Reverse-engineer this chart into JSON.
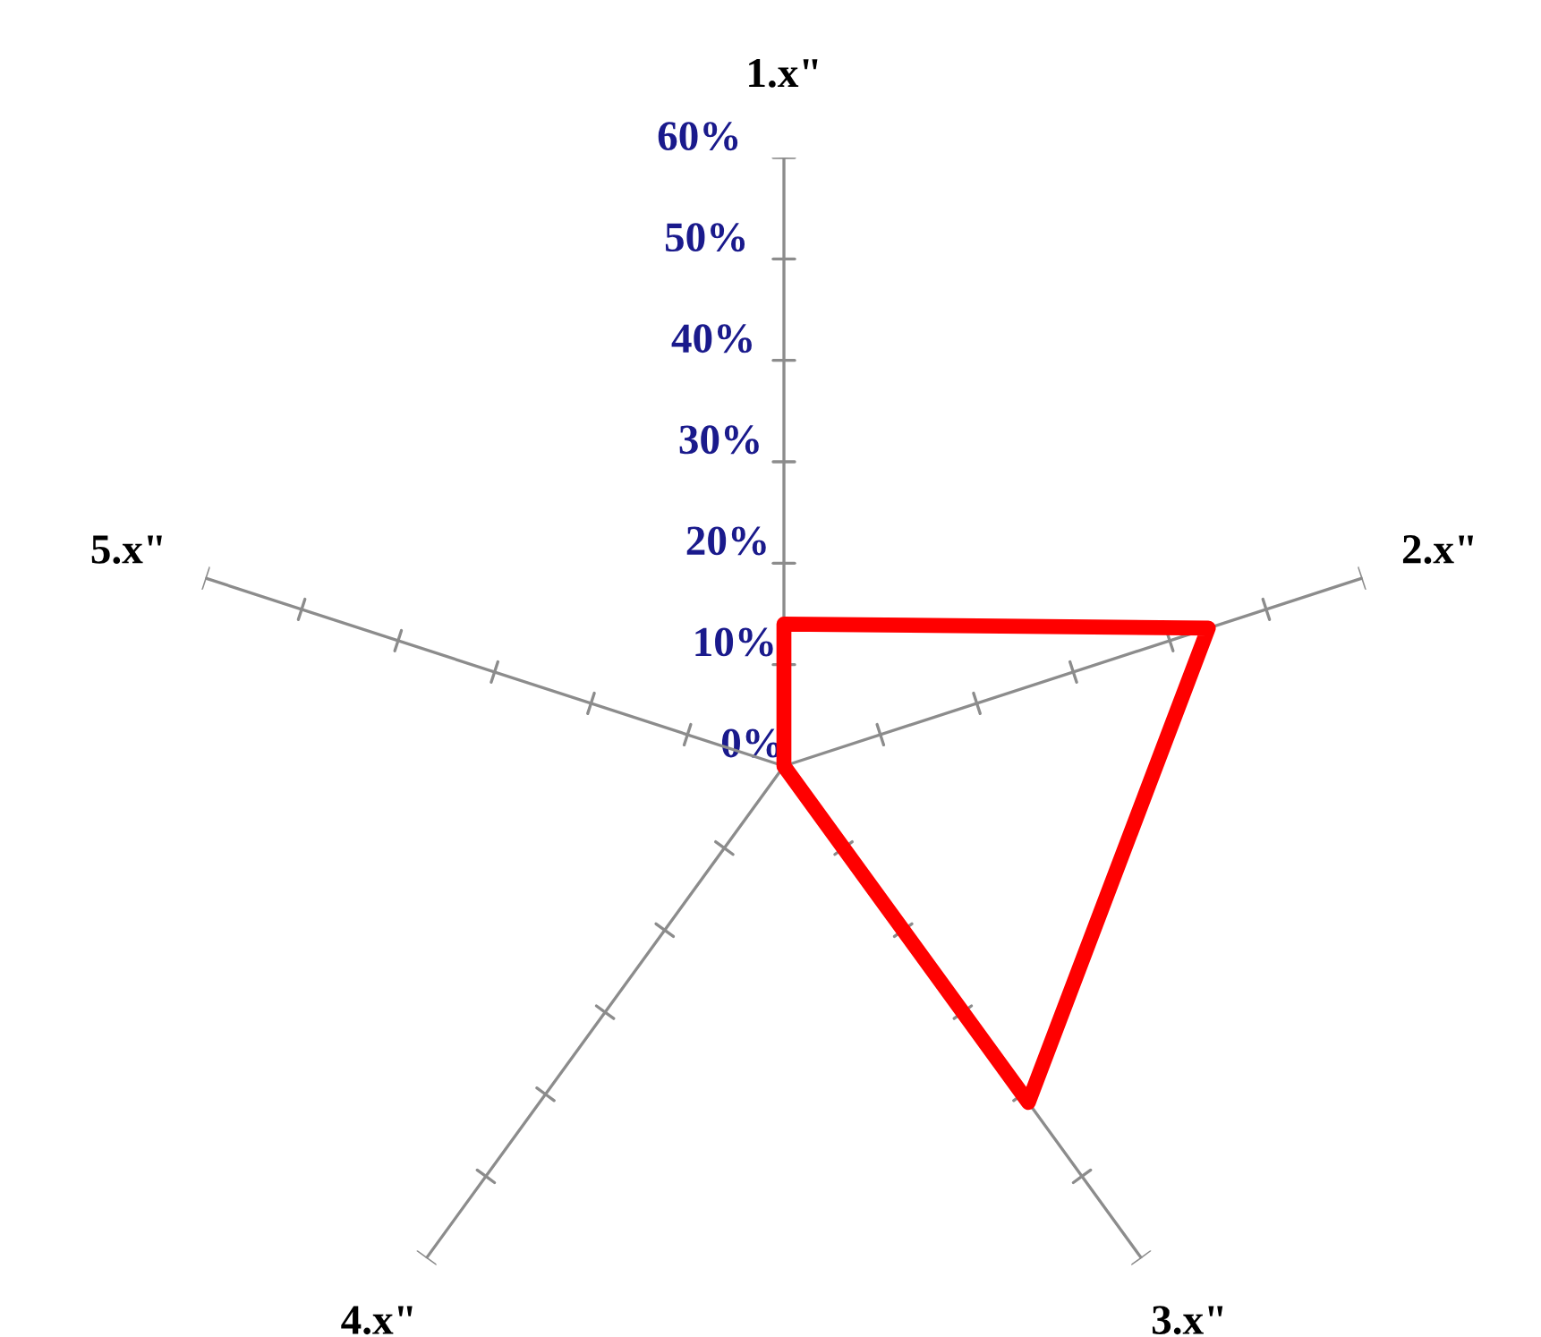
{
  "chart_data": {
    "type": "radar",
    "categories": [
      "1.x\"",
      "2.x\"",
      "3.x\"",
      "4.x\"",
      "5.x\""
    ],
    "series": [
      {
        "color": "#ff0000",
        "values": [
          14,
          44,
          41,
          0,
          0
        ]
      }
    ],
    "ylim": [
      0,
      60
    ],
    "yticks": [
      {
        "value": 0,
        "label": "0%"
      },
      {
        "value": 10,
        "label": "10%"
      },
      {
        "value": 20,
        "label": "20%"
      },
      {
        "value": 30,
        "label": "30%"
      },
      {
        "value": 40,
        "label": "40%"
      },
      {
        "value": 50,
        "label": "50%"
      },
      {
        "value": 60,
        "label": "60%"
      }
    ],
    "grid": false,
    "marker": "none",
    "line_style": "solid"
  }
}
